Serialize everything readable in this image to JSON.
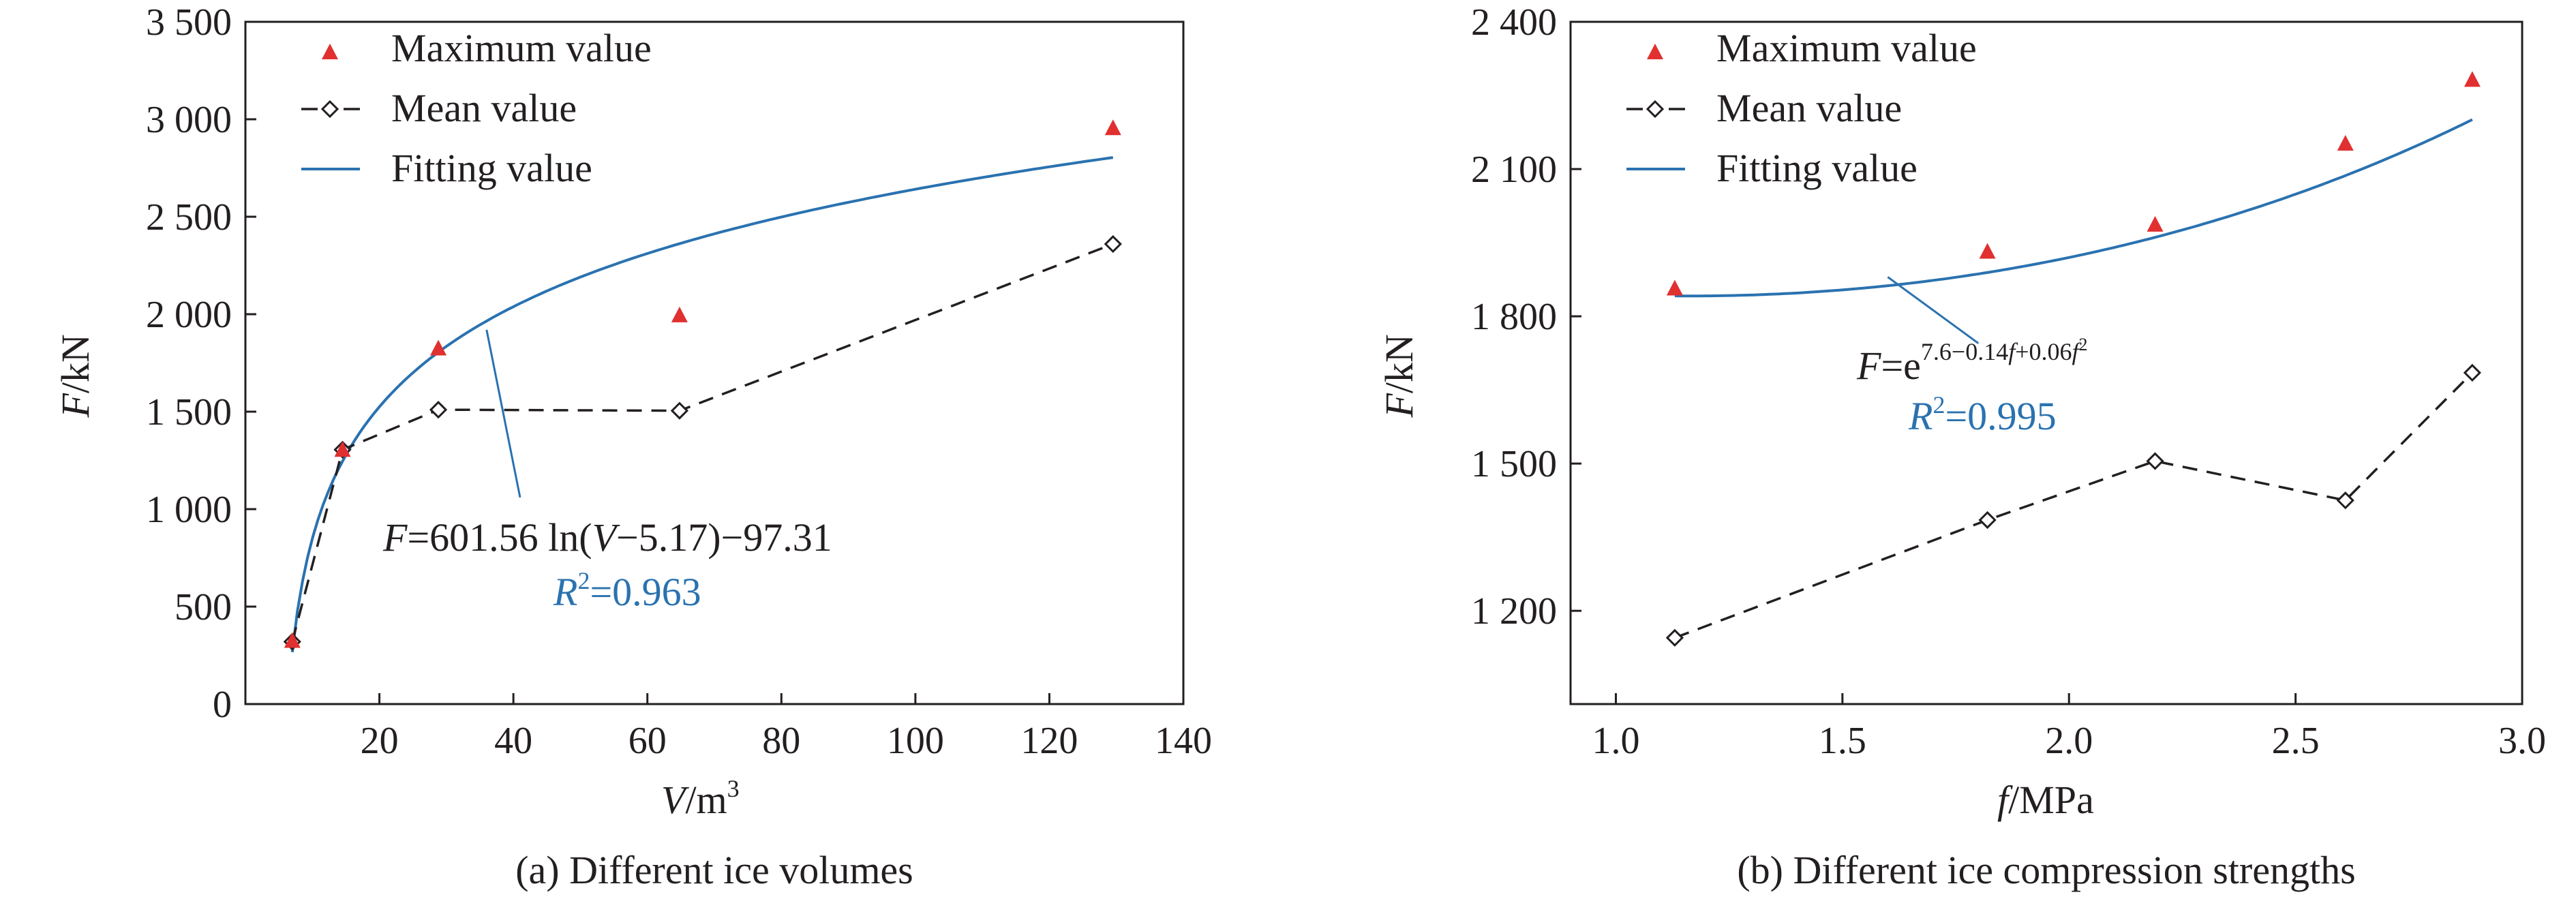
{
  "colors": {
    "fit": "#2a72b0",
    "max": "#e03030",
    "mean": "#231f20",
    "axis": "#231f20"
  },
  "legend": {
    "max": "Maximum value",
    "mean": "Mean value",
    "fit": "Fitting value"
  },
  "chart_data": [
    {
      "type": "line",
      "caption": "(a) Different ice volumes",
      "xlabel": {
        "var": "V",
        "unit": "/m",
        "sup": "3"
      },
      "ylabel": {
        "var": "F",
        "unit": "/kN"
      },
      "xlim": [
        0,
        140
      ],
      "ylim": [
        0,
        3500
      ],
      "xticks": [
        20,
        40,
        60,
        80,
        100,
        120,
        140
      ],
      "xtick_labels": [
        "20",
        "40",
        "60",
        "80",
        "100",
        "120",
        "140"
      ],
      "yticks": [
        0,
        500,
        1000,
        1500,
        2000,
        2500,
        3000,
        3500
      ],
      "ytick_labels": [
        "0",
        "500",
        "1 000",
        "1 500",
        "2 000",
        "2 500",
        "3 000",
        "3 500"
      ],
      "series": [
        {
          "name": "Maximum value",
          "kind": "marker-triangle",
          "x": [
            7,
            14.5,
            28.8,
            64.8,
            129.5
          ],
          "y": [
            320,
            1300,
            1820,
            1990,
            2950
          ]
        },
        {
          "name": "Mean value",
          "kind": "dashed-diamond",
          "x": [
            7,
            14.5,
            28.8,
            64.8,
            129.5
          ],
          "y": [
            320,
            1305,
            1510,
            1505,
            2360
          ]
        },
        {
          "name": "Fitting value",
          "kind": "fit-log",
          "a": 601.56,
          "b": 5.17,
          "c": -97.31,
          "xrange": [
            7,
            129.5
          ]
        }
      ],
      "equation": {
        "lhs": "F",
        "eq": "=601.56 ln(",
        "var": "V",
        "rest": "−5.17)−97.31"
      },
      "r2": {
        "r": "R",
        "sup": "2",
        "val": "=0.963"
      },
      "leader": {
        "from": [
          36,
          1920
        ],
        "to": [
          41,
          1060
        ]
      }
    },
    {
      "type": "line",
      "caption": "(b) Different ice compression strengths",
      "xlabel": {
        "var": "f",
        "unit": "/MPa",
        "sup": ""
      },
      "ylabel": {
        "var": "F",
        "unit": "/kN"
      },
      "xlim": [
        0.9,
        3.0
      ],
      "ylim": [
        1010,
        2400
      ],
      "xticks": [
        1.0,
        1.5,
        2.0,
        2.5,
        3.0
      ],
      "xtick_labels": [
        "1.0",
        "1.5",
        "2.0",
        "2.5",
        "3.0"
      ],
      "yticks": [
        1200,
        1500,
        1800,
        2100,
        2400
      ],
      "ytick_labels": [
        "1 200",
        "1 500",
        "1 800",
        "2 100",
        "2 400"
      ],
      "series": [
        {
          "name": "Maximum value",
          "kind": "marker-triangle",
          "x": [
            1.13,
            1.82,
            2.19,
            2.61,
            2.89
          ],
          "y": [
            1855,
            1930,
            1985,
            2150,
            2280
          ]
        },
        {
          "name": "Mean value",
          "kind": "dashed-diamond",
          "x": [
            1.13,
            1.82,
            2.19,
            2.61,
            2.89
          ],
          "y": [
            1145,
            1385,
            1505,
            1425,
            1685
          ]
        },
        {
          "name": "Fitting value",
          "kind": "fit-exp",
          "c0": 7.6,
          "c1": -0.14,
          "c2": 0.06,
          "xrange": [
            1.13,
            2.89
          ]
        }
      ],
      "equation": {
        "lhs": "F",
        "eq": "=e",
        "sup_a": "7.6−0.14",
        "sup_var": "f",
        "sup_b": "+0.06",
        "sup_var2": "f",
        "sup_sq": "2"
      },
      "r2": {
        "r": "R",
        "sup": "2",
        "val": "=0.995"
      },
      "leader": {
        "from": [
          1.6,
          1880
        ],
        "to": [
          1.8,
          1745
        ]
      }
    }
  ]
}
